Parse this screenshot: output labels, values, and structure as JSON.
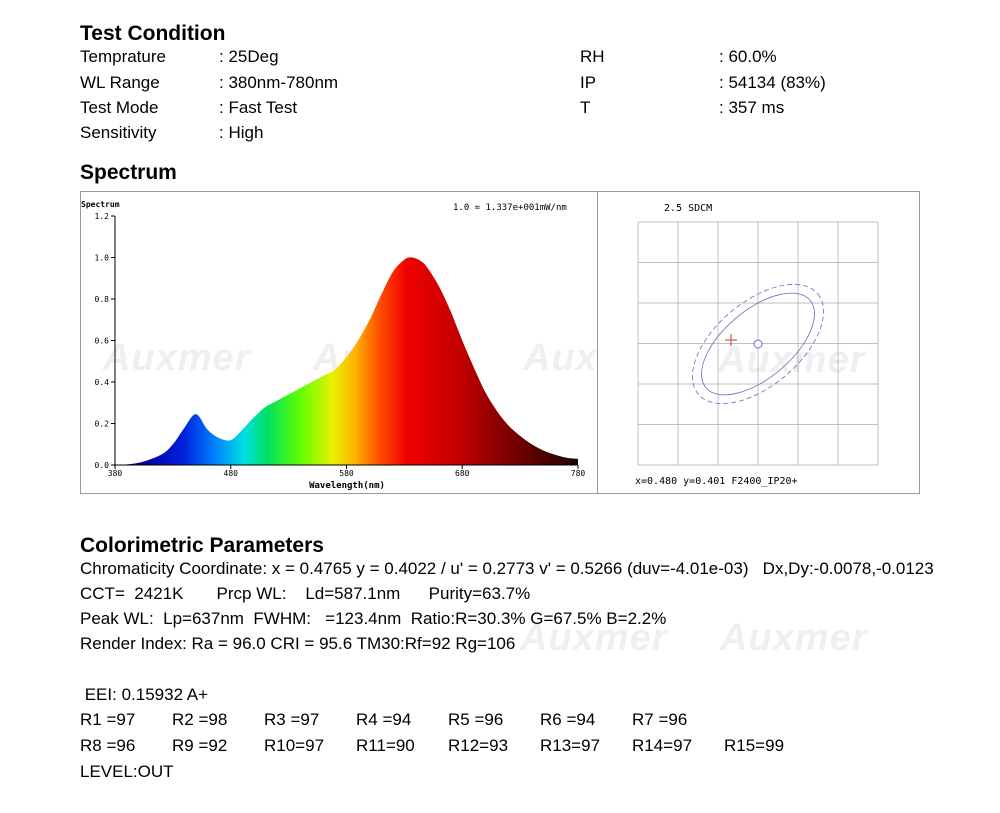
{
  "test_condition": {
    "title": "Test Condition",
    "left": [
      {
        "label": "Temprature",
        "value": ": 25Deg"
      },
      {
        "label": "WL Range",
        "value": ": 380nm-780nm"
      },
      {
        "label": "Test Mode",
        "value": ": Fast Test"
      },
      {
        "label": "Sensitivity",
        "value": ": High"
      }
    ],
    "right": [
      {
        "label": "RH",
        "value": ": 60.0%"
      },
      {
        "label": "IP",
        "value": ": 54134 (83%)"
      },
      {
        "label": "T",
        "value": ": 357 ms"
      }
    ]
  },
  "spectrum": {
    "title": "Spectrum",
    "ylabel": "Spectrum",
    "xlabel": "Wavelength(nm)",
    "scale_note": "1.0 = 1.337e+001mW/nm",
    "watermark": "Auxmer"
  },
  "cie": {
    "title": "2.5 SDCM",
    "footer": "x=0.480 y=0.401 F2400_IP20+",
    "grid_color": "#aaaaaa",
    "ellipse_color": "#6a6acd",
    "marker_color": "#cc3333"
  },
  "colorimetric": {
    "title": "Colorimetric Parameters",
    "lines": [
      "Chromaticity Coordinate: x = 0.4765 y = 0.4022 / u' = 0.2773 v' = 0.5266 (duv=-4.01e-03)   Dx,Dy:-0.0078,-0.0123",
      "CCT=  2421K       Prcp WL:    Ld=587.1nm      Purity=63.7%",
      "Peak WL:  Lp=637nm  FWHM:   =123.4nm  Ratio:R=30.3% G=67.5% B=2.2%",
      "Render Index: Ra = 96.0 CRI = 95.6 TM30:Rf=92 Rg=106"
    ],
    "eei": " EEI: 0.15932 A+",
    "r_row1": [
      "R1 =97",
      "R2 =98",
      "R3 =97",
      "R4 =94",
      "R5 =96",
      "R6 =94",
      "R7 =96"
    ],
    "r_row2": [
      "R8 =96",
      "R9 =92",
      "R10=97",
      "R11=90",
      "R12=93",
      "R13=97",
      "R14=97",
      "R15=99"
    ],
    "level": "LEVEL:OUT"
  },
  "chart_data": {
    "type": "area",
    "title": "",
    "xlabel": "Wavelength(nm)",
    "ylabel": "Spectrum",
    "xlim": [
      380,
      780
    ],
    "ylim": [
      0,
      1.2
    ],
    "x_ticks": [
      "380",
      "480",
      "580",
      "680",
      "780"
    ],
    "y_ticks": [
      "0.0",
      "0.2",
      "0.4",
      "0.6",
      "0.8",
      "1.0",
      "1.2"
    ],
    "x": [
      380,
      400,
      420,
      430,
      440,
      450,
      460,
      470,
      480,
      490,
      500,
      510,
      520,
      530,
      540,
      550,
      560,
      570,
      580,
      590,
      600,
      610,
      620,
      630,
      637,
      645,
      650,
      660,
      670,
      680,
      690,
      700,
      710,
      720,
      730,
      740,
      750,
      760,
      770,
      780
    ],
    "values": [
      0.0,
      0.01,
      0.05,
      0.1,
      0.18,
      0.245,
      0.17,
      0.13,
      0.12,
      0.17,
      0.23,
      0.28,
      0.31,
      0.34,
      0.37,
      0.4,
      0.43,
      0.46,
      0.52,
      0.6,
      0.7,
      0.82,
      0.93,
      0.99,
      1.0,
      0.98,
      0.95,
      0.86,
      0.74,
      0.6,
      0.47,
      0.35,
      0.26,
      0.19,
      0.14,
      0.1,
      0.07,
      0.05,
      0.035,
      0.03
    ],
    "grid": false
  }
}
